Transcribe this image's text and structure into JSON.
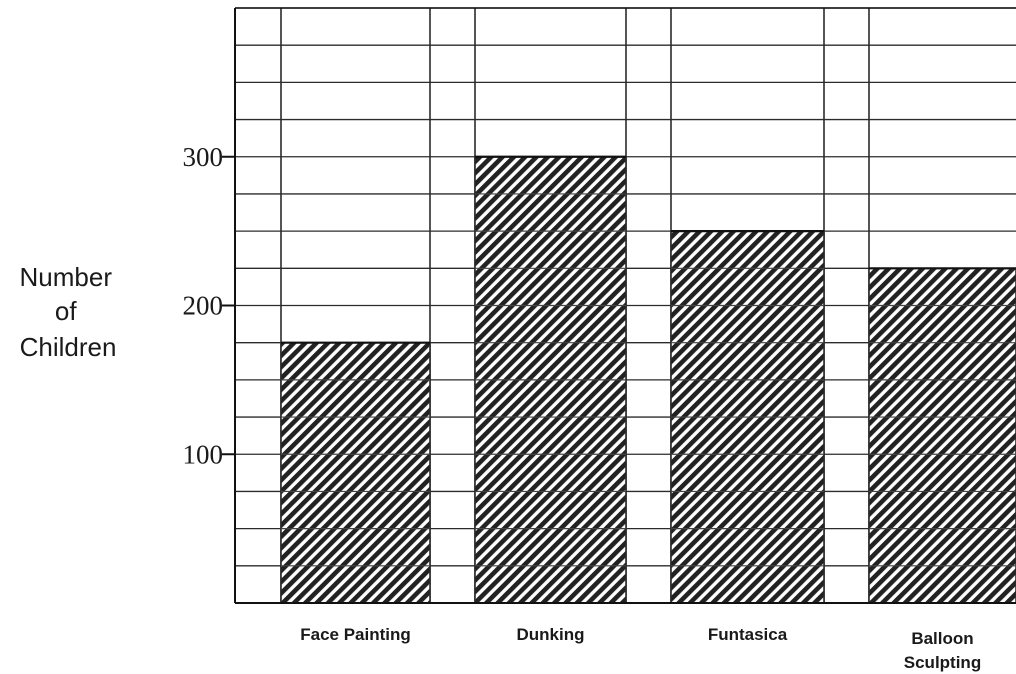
{
  "chart_data": {
    "type": "bar",
    "title": "",
    "xlabel": "",
    "ylabel_lines": [
      "Number",
      "of",
      "Children"
    ],
    "categories": [
      [
        "Face Painting"
      ],
      [
        "Dunking"
      ],
      [
        "Funtasica"
      ],
      [
        "Balloon",
        "Sculpting"
      ]
    ],
    "values": [
      175,
      300,
      250,
      225
    ],
    "ylim": [
      0,
      400
    ],
    "grid_step": 25,
    "yticks": [
      100,
      200,
      300
    ],
    "ytick_labels": [
      "100",
      "200",
      "300"
    ],
    "grid": true,
    "bar_fill": "hatched",
    "colors": {
      "grid": "#2b2b2b",
      "bar_hatch": "#222222",
      "bar_background": "#ffffff",
      "text": "#1a1a1a"
    }
  }
}
